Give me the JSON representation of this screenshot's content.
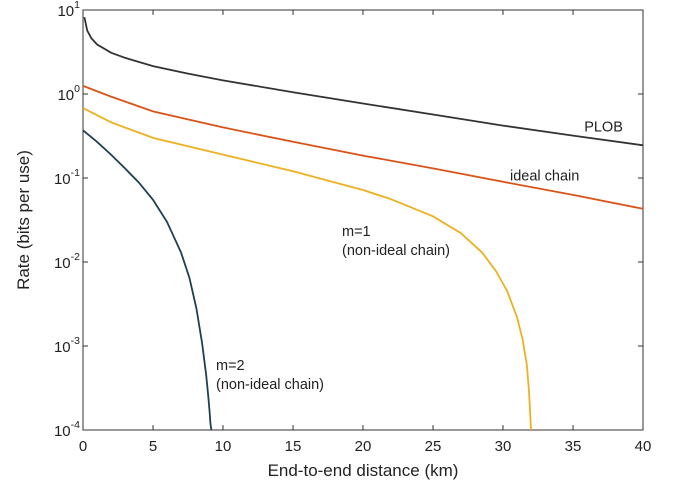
{
  "chart_data": {
    "type": "line",
    "xlabel": "End-to-end distance (km)",
    "ylabel": "Rate (bits per use)",
    "xlim": [
      0,
      40
    ],
    "ylim": [
      0.0001,
      10
    ],
    "yscale": "log",
    "grid": false,
    "legend": "none",
    "xticks": [
      0,
      5,
      10,
      15,
      20,
      25,
      30,
      35,
      40
    ],
    "xtick_labels": [
      "0",
      "5",
      "10",
      "15",
      "20",
      "25",
      "30",
      "35",
      "40"
    ],
    "yticks": [
      0.0001,
      0.001,
      0.01,
      0.1,
      1,
      10
    ],
    "ytick_labels": [
      {
        "base": "10",
        "exp": "-4"
      },
      {
        "base": "10",
        "exp": "-3"
      },
      {
        "base": "10",
        "exp": "-2"
      },
      {
        "base": "10",
        "exp": "-1"
      },
      {
        "base": "10",
        "exp": "0"
      },
      {
        "base": "10",
        "exp": "1"
      }
    ],
    "series": [
      {
        "color": "#333333",
        "x": [
          0.1,
          0.3,
          0.6,
          1,
          2,
          3,
          5,
          7.5,
          10,
          15,
          20,
          25,
          30,
          35,
          40
        ],
        "y": [
          8.2,
          5.7,
          4.6,
          3.9,
          3.1,
          2.7,
          2.15,
          1.75,
          1.45,
          1.05,
          0.77,
          0.57,
          0.42,
          0.32,
          0.245
        ]
      },
      {
        "color": "#d95319",
        "x": [
          0,
          2,
          5,
          10,
          15,
          20,
          25,
          30,
          35,
          40
        ],
        "y": [
          1.25,
          0.93,
          0.62,
          0.4,
          0.27,
          0.185,
          0.13,
          0.09,
          0.063,
          0.043
        ]
      },
      {
        "color": "#edb120",
        "x": [
          0,
          2,
          5,
          10,
          15,
          20,
          22,
          25,
          27,
          28.5,
          29.5,
          30.3,
          31,
          31.4,
          31.7,
          31.85,
          31.95,
          32
        ],
        "y": [
          0.68,
          0.46,
          0.3,
          0.19,
          0.12,
          0.072,
          0.056,
          0.035,
          0.022,
          0.013,
          0.0078,
          0.0045,
          0.0022,
          0.0012,
          0.0006,
          0.0003,
          0.00015,
          0.0001
        ]
      },
      {
        "color": "#1f3f4f",
        "x": [
          0,
          1,
          2,
          3,
          4,
          5,
          6,
          7,
          7.6,
          8.1,
          8.5,
          8.8,
          8.95,
          9.05,
          9.1,
          9.15,
          9.18
        ],
        "y": [
          0.37,
          0.27,
          0.19,
          0.13,
          0.088,
          0.055,
          0.03,
          0.013,
          0.0065,
          0.0028,
          0.0011,
          0.00045,
          0.00025,
          0.00016,
          0.00012,
          0.000105,
          0.0001
        ]
      }
    ],
    "annotations": [
      {
        "lines": [
          "PLOB"
        ],
        "x": 35.8,
        "y": 0.36
      },
      {
        "lines": [
          "ideal chain"
        ],
        "x": 30.5,
        "y": 0.094
      },
      {
        "lines": [
          "m=1",
          "(non-ideal chain)"
        ],
        "x": 18.5,
        "y": 0.0205
      },
      {
        "lines": [
          "m=2",
          "(non-ideal chain)"
        ],
        "x": 9.5,
        "y": 0.00052
      }
    ]
  }
}
